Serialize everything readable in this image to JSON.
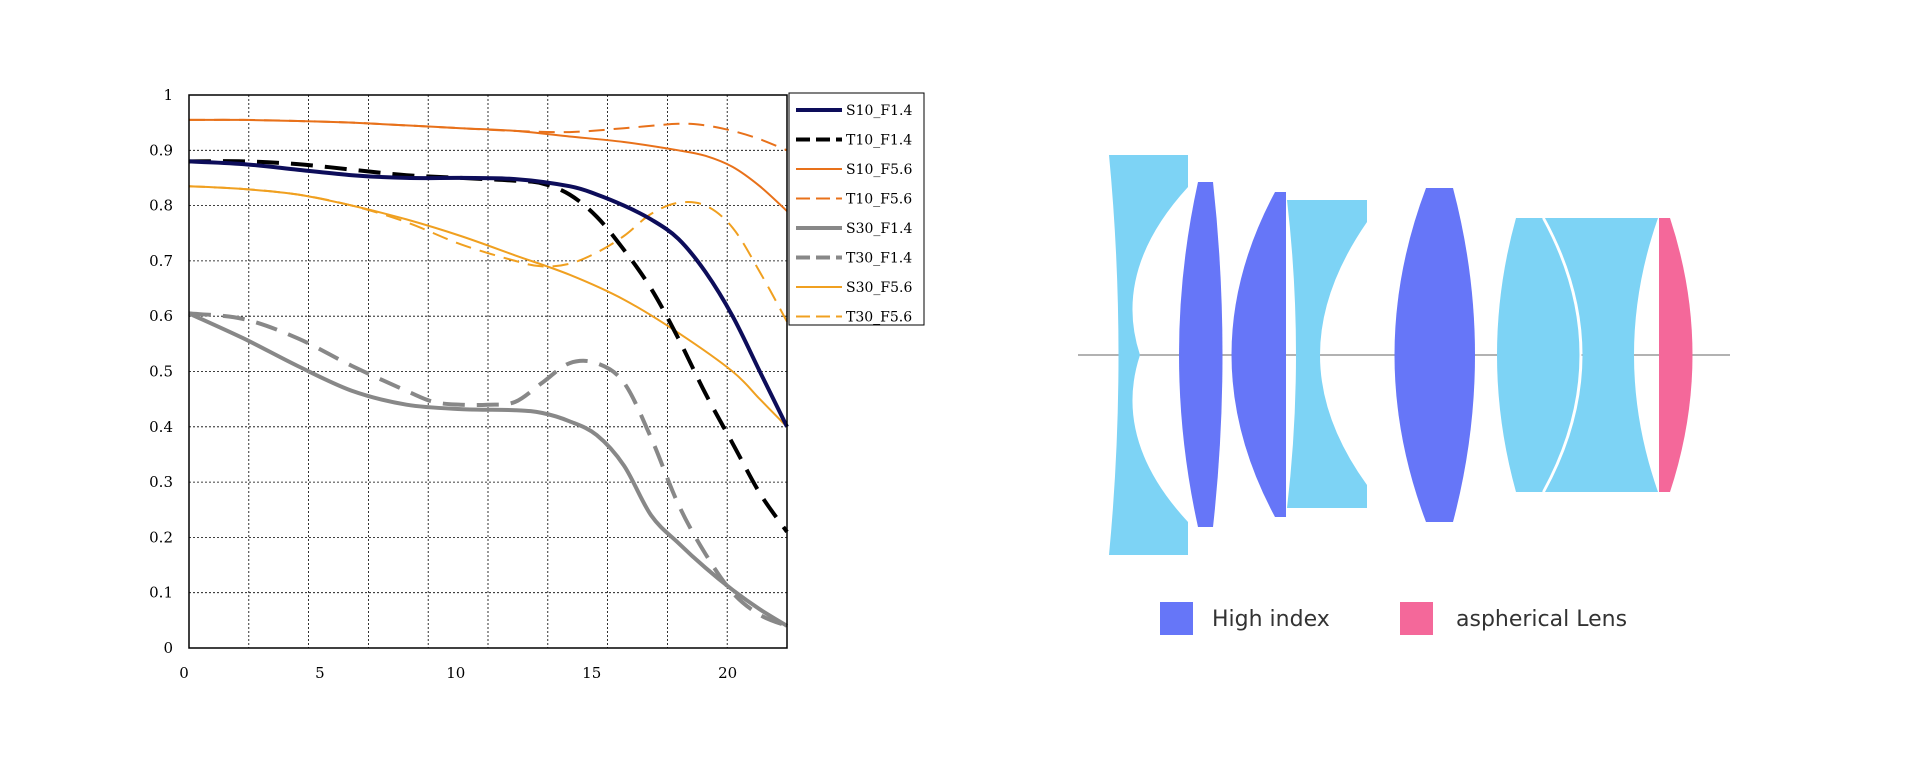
{
  "chart_data": {
    "type": "line",
    "xlim": [
      0,
      22
    ],
    "ylim": [
      0,
      1
    ],
    "x_ticks": [
      "0",
      "5",
      "10",
      "15",
      "20"
    ],
    "y_ticks": [
      "0",
      "0.1",
      "0.2",
      "0.3",
      "0.4",
      "0.5",
      "0.6",
      "0.7",
      "0.8",
      "0.9",
      "1"
    ],
    "grid": true,
    "legend_position": "right",
    "series": [
      {
        "name": "S10_F1.4",
        "color": "#0d0d5a",
        "dashed": false,
        "x": [
          0,
          2,
          4,
          6,
          8,
          10,
          12,
          14,
          15,
          16,
          17,
          18,
          19,
          20,
          21,
          22
        ],
        "y": [
          0.88,
          0.875,
          0.865,
          0.855,
          0.85,
          0.85,
          0.848,
          0.835,
          0.82,
          0.8,
          0.775,
          0.74,
          0.68,
          0.6,
          0.5,
          0.4
        ]
      },
      {
        "name": "T10_F1.4",
        "color": "#000000",
        "dashed": true,
        "x": [
          0,
          2,
          4,
          6,
          8,
          10,
          12,
          13,
          14,
          15,
          16,
          17,
          18,
          19,
          20,
          21,
          22
        ],
        "y": [
          0.88,
          0.88,
          0.875,
          0.865,
          0.855,
          0.85,
          0.845,
          0.84,
          0.82,
          0.78,
          0.72,
          0.65,
          0.56,
          0.46,
          0.37,
          0.28,
          0.21
        ]
      },
      {
        "name": "S10_F5.6",
        "color": "#e8711a",
        "dashed": false,
        "x": [
          0,
          2,
          4,
          6,
          8,
          10,
          12,
          14,
          16,
          18,
          19,
          20,
          21,
          22
        ],
        "y": [
          0.955,
          0.955,
          0.953,
          0.95,
          0.945,
          0.94,
          0.935,
          0.925,
          0.915,
          0.9,
          0.89,
          0.87,
          0.835,
          0.79
        ]
      },
      {
        "name": "T10_F5.6",
        "color": "#e8711a",
        "dashed": true,
        "x": [
          0,
          2,
          4,
          6,
          8,
          10,
          12,
          14,
          16,
          18,
          19,
          20,
          21,
          22
        ],
        "y": [
          0.955,
          0.955,
          0.953,
          0.95,
          0.945,
          0.94,
          0.935,
          0.933,
          0.94,
          0.948,
          0.945,
          0.935,
          0.92,
          0.9
        ]
      },
      {
        "name": "S30_F1.4",
        "color": "#888888",
        "dashed": false,
        "x": [
          0,
          2,
          4,
          6,
          8,
          10,
          12,
          13,
          14,
          15,
          16,
          17,
          18,
          19,
          20,
          21,
          22
        ],
        "y": [
          0.605,
          0.56,
          0.51,
          0.465,
          0.44,
          0.432,
          0.43,
          0.425,
          0.41,
          0.385,
          0.33,
          0.24,
          0.19,
          0.145,
          0.105,
          0.07,
          0.04
        ]
      },
      {
        "name": "T30_F1.4",
        "color": "#888888",
        "dashed": true,
        "x": [
          0,
          2,
          4,
          6,
          8,
          9,
          10,
          11,
          12,
          13,
          14,
          15,
          16,
          17,
          18,
          19,
          20,
          21,
          22
        ],
        "y": [
          0.605,
          0.595,
          0.56,
          0.51,
          0.465,
          0.445,
          0.44,
          0.44,
          0.445,
          0.48,
          0.515,
          0.515,
          0.48,
          0.38,
          0.26,
          0.17,
          0.1,
          0.06,
          0.04
        ]
      },
      {
        "name": "S30_F5.6",
        "color": "#f0a020",
        "dashed": false,
        "x": [
          0,
          2,
          4,
          6,
          8,
          10,
          12,
          14,
          16,
          18,
          20,
          21,
          22
        ],
        "y": [
          0.835,
          0.83,
          0.82,
          0.8,
          0.775,
          0.745,
          0.71,
          0.675,
          0.63,
          0.57,
          0.5,
          0.45,
          0.4
        ]
      },
      {
        "name": "T30_F5.6",
        "color": "#f0a020",
        "dashed": true,
        "x": [
          0,
          2,
          4,
          6,
          8,
          10,
          12,
          13,
          14,
          15,
          16,
          17,
          18,
          19,
          20,
          21,
          22
        ],
        "y": [
          0.835,
          0.83,
          0.82,
          0.8,
          0.77,
          0.73,
          0.7,
          0.69,
          0.695,
          0.715,
          0.745,
          0.785,
          0.805,
          0.8,
          0.76,
          0.68,
          0.59
        ]
      }
    ]
  },
  "lens_diagram": {
    "colors": {
      "standard": "#7dd3f5",
      "high_index": "#6676f8",
      "aspherical": "#f4689a"
    },
    "legend": [
      {
        "label": "High index",
        "color": "#6676f8"
      },
      {
        "label": "aspherical Lens",
        "color": "#f4689a"
      }
    ]
  }
}
